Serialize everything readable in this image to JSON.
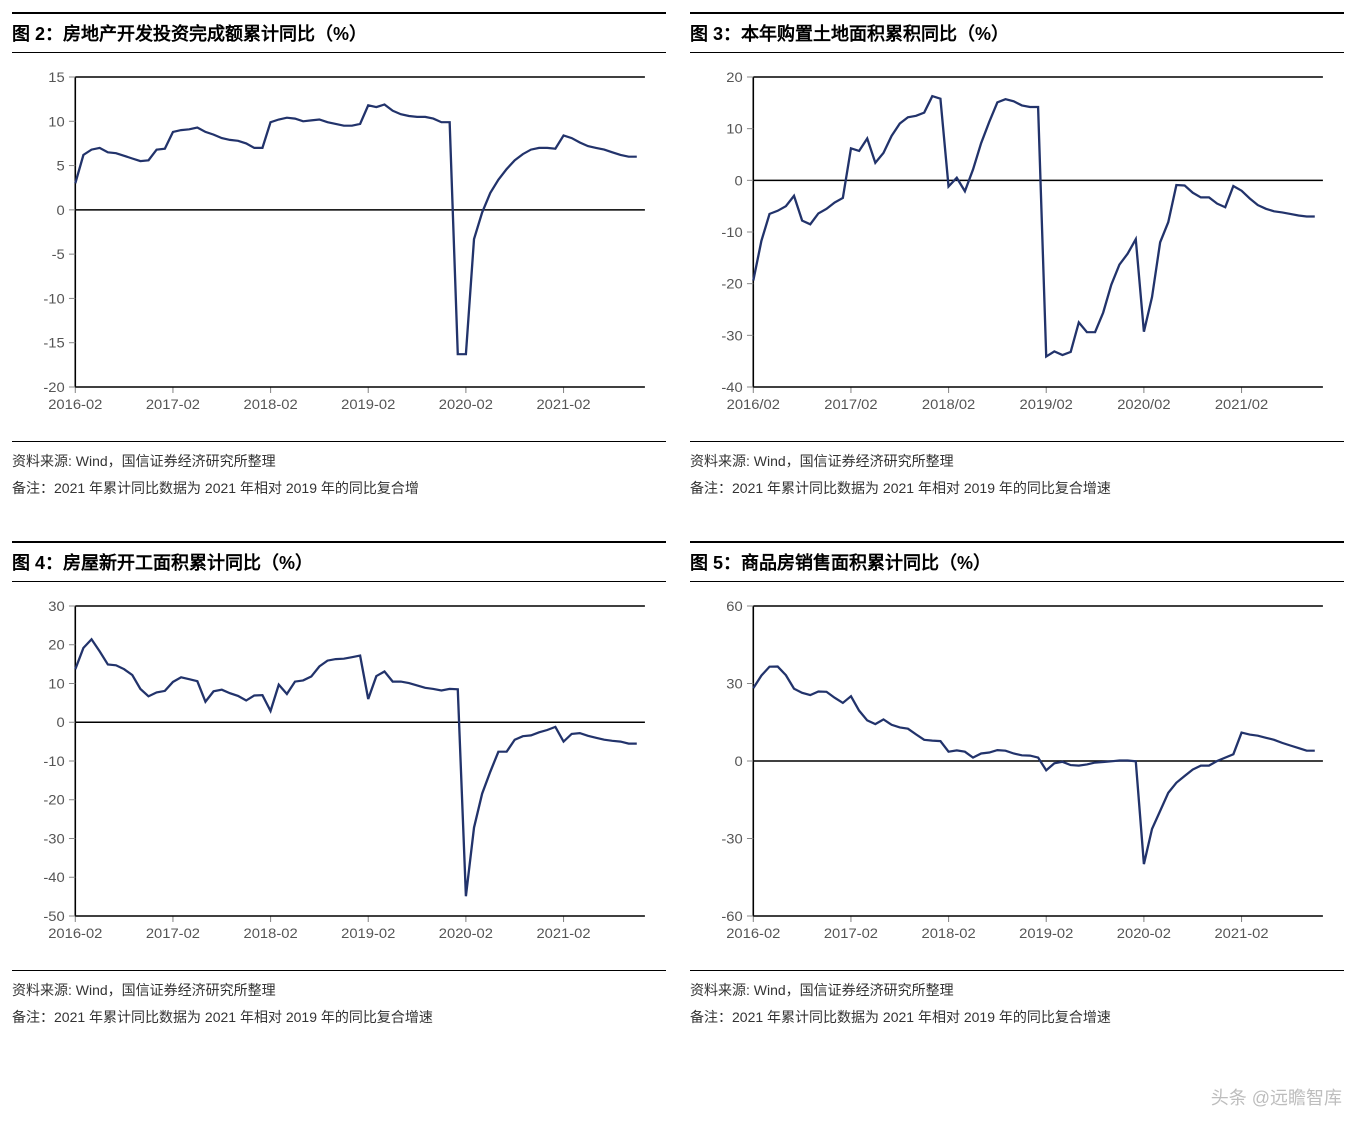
{
  "watermark": "头条 @远瞻智库",
  "charts": [
    {
      "id": "chart2",
      "title": "图 2：房地产开发投资完成额累计同比（%）",
      "type": "line",
      "line_color": "#22336b",
      "line_width": 2.2,
      "background_color": "#ffffff",
      "frame_color": "#000000",
      "tick_color": "#888888",
      "label_color": "#555555",
      "label_fontsize": 14,
      "xlim": [
        0,
        70
      ],
      "ylim": [
        -20,
        15
      ],
      "ytick_step": 5,
      "yticks": [
        -20,
        -15,
        -10,
        -5,
        0,
        5,
        10,
        15
      ],
      "xticks_idx": [
        0,
        12,
        24,
        36,
        48,
        60
      ],
      "xticks_label": [
        "2016-02",
        "2017-02",
        "2018-02",
        "2019-02",
        "2020-02",
        "2021-02"
      ],
      "values": [
        3.0,
        6.2,
        6.8,
        7.0,
        6.5,
        6.4,
        6.1,
        5.8,
        5.5,
        5.6,
        6.8,
        6.9,
        8.8,
        9.0,
        9.1,
        9.3,
        8.8,
        8.5,
        8.1,
        7.9,
        7.8,
        7.5,
        7.0,
        7.0,
        9.9,
        10.2,
        10.4,
        10.3,
        10.0,
        10.1,
        10.2,
        9.9,
        9.7,
        9.5,
        9.5,
        9.7,
        11.8,
        11.6,
        11.9,
        11.2,
        10.8,
        10.6,
        10.5,
        10.5,
        10.3,
        9.9,
        9.9,
        -16.3,
        -16.3,
        -3.3,
        -0.3,
        1.9,
        3.4,
        4.6,
        5.6,
        6.3,
        6.8,
        7.0,
        7.0,
        6.9,
        8.4,
        8.1,
        7.6,
        7.2,
        7.0,
        6.8,
        6.5,
        6.2,
        6.0,
        6.0
      ],
      "source": "资料来源: Wind，国信证券经济研究所整理",
      "note": "备注：2021 年累计同比数据为 2021 年相对 2019 年的同比复合增"
    },
    {
      "id": "chart3",
      "title": "图 3：本年购置土地面积累积同比（%）",
      "type": "line",
      "line_color": "#22336b",
      "line_width": 2.2,
      "background_color": "#ffffff",
      "frame_color": "#000000",
      "tick_color": "#888888",
      "label_color": "#555555",
      "label_fontsize": 14,
      "xlim": [
        0,
        70
      ],
      "ylim": [
        -40,
        20
      ],
      "ytick_step": 10,
      "yticks": [
        -40,
        -30,
        -20,
        -10,
        0,
        10,
        20
      ],
      "xticks_idx": [
        0,
        12,
        24,
        36,
        48,
        60
      ],
      "xticks_label": [
        "2016/02",
        "2017/02",
        "2018/02",
        "2019/02",
        "2020/02",
        "2021/02"
      ],
      "values": [
        -19.4,
        -11.7,
        -6.5,
        -5.9,
        -5.0,
        -3.0,
        -7.8,
        -8.5,
        -6.4,
        -5.5,
        -4.3,
        -3.4,
        6.2,
        5.7,
        8.1,
        3.4,
        5.3,
        8.6,
        11.0,
        12.2,
        12.5,
        13.1,
        16.3,
        15.8,
        -1.2,
        0.5,
        -2.1,
        2.1,
        7.2,
        11.3,
        15.1,
        15.7,
        15.3,
        14.5,
        14.2,
        14.2,
        -34.1,
        -33.1,
        -33.8,
        -33.2,
        -27.5,
        -29.4,
        -29.4,
        -25.6,
        -20.2,
        -16.3,
        -14.2,
        -11.4,
        -29.3,
        -22.6,
        -12.0,
        -8.1,
        -0.9,
        -1.0,
        -2.4,
        -3.3,
        -3.3,
        -4.5,
        -5.2,
        -1.1,
        -2.0,
        -3.5,
        -4.8,
        -5.5,
        -6.0,
        -6.2,
        -6.5,
        -6.8,
        -7.0,
        -7.0
      ],
      "source": "资料来源: Wind，国信证券经济研究所整理",
      "note": "备注：2021 年累计同比数据为 2021 年相对 2019 年的同比复合增速"
    },
    {
      "id": "chart4",
      "title": "图 4：房屋新开工面积累计同比（%）",
      "type": "line",
      "line_color": "#22336b",
      "line_width": 2.2,
      "background_color": "#ffffff",
      "frame_color": "#000000",
      "tick_color": "#888888",
      "label_color": "#555555",
      "label_fontsize": 14,
      "xlim": [
        0,
        70
      ],
      "ylim": [
        -50,
        30
      ],
      "ytick_step": 10,
      "yticks": [
        -50,
        -40,
        -30,
        -20,
        -10,
        0,
        10,
        20,
        30
      ],
      "xticks_idx": [
        0,
        12,
        24,
        36,
        48,
        60
      ],
      "xticks_label": [
        "2016-02",
        "2017-02",
        "2018-02",
        "2019-02",
        "2020-02",
        "2021-02"
      ],
      "values": [
        13.7,
        19.2,
        21.4,
        18.3,
        14.9,
        14.7,
        13.7,
        12.2,
        8.6,
        6.7,
        7.7,
        8.1,
        10.4,
        11.6,
        11.1,
        10.6,
        5.3,
        8.0,
        8.4,
        7.5,
        6.8,
        5.6,
        6.9,
        7.0,
        2.9,
        9.7,
        7.3,
        10.5,
        10.8,
        11.8,
        14.4,
        15.9,
        16.3,
        16.4,
        16.8,
        17.2,
        6.0,
        11.9,
        13.1,
        10.5,
        10.5,
        10.1,
        9.5,
        8.9,
        8.6,
        8.2,
        8.6,
        8.5,
        -44.9,
        -27.2,
        -18.4,
        -12.8,
        -7.6,
        -7.6,
        -4.5,
        -3.6,
        -3.4,
        -2.6,
        -2.0,
        -1.2,
        -5.0,
        -3.0,
        -2.8,
        -3.5,
        -4.0,
        -4.5,
        -4.8,
        -5.0,
        -5.5,
        -5.5
      ],
      "source": "资料来源: Wind，国信证券经济研究所整理",
      "note": "备注：2021 年累计同比数据为 2021 年相对 2019 年的同比复合增速"
    },
    {
      "id": "chart5",
      "title": "图 5：商品房销售面积累计同比（%）",
      "type": "line",
      "line_color": "#22336b",
      "line_width": 2.2,
      "background_color": "#ffffff",
      "frame_color": "#000000",
      "tick_color": "#888888",
      "label_color": "#555555",
      "label_fontsize": 14,
      "xlim": [
        0,
        70
      ],
      "ylim": [
        -60,
        60
      ],
      "ytick_step": 30,
      "yticks": [
        -60,
        -30,
        0,
        30,
        60
      ],
      "xticks_idx": [
        0,
        12,
        24,
        36,
        48,
        60
      ],
      "xticks_label": [
        "2016-02",
        "2017-02",
        "2018-02",
        "2019-02",
        "2020-02",
        "2021-02"
      ],
      "values": [
        28.2,
        33.1,
        36.5,
        36.6,
        33.2,
        28.0,
        26.4,
        25.5,
        26.9,
        26.8,
        24.5,
        22.5,
        25.1,
        19.5,
        15.7,
        14.3,
        16.1,
        14.0,
        13.0,
        12.5,
        10.3,
        8.2,
        7.9,
        7.7,
        3.6,
        4.1,
        3.6,
        1.3,
        2.9,
        3.3,
        4.2,
        4.0,
        2.9,
        2.2,
        2.1,
        1.3,
        -3.6,
        -0.9,
        -0.3,
        -1.6,
        -1.8,
        -1.3,
        -0.6,
        -0.4,
        -0.1,
        0.2,
        0.2,
        -0.1,
        -39.9,
        -26.3,
        -19.3,
        -12.3,
        -8.4,
        -5.8,
        -3.3,
        -1.8,
        -1.8,
        0.0,
        1.3,
        2.6,
        11.0,
        10.2,
        9.8,
        9.0,
        8.2,
        7.0,
        6.0,
        5.0,
        4.0,
        4.0
      ],
      "source": "资料来源: Wind，国信证券经济研究所整理",
      "note": "备注：2021 年累计同比数据为 2021 年相对 2019 年的同比复合增速"
    }
  ]
}
